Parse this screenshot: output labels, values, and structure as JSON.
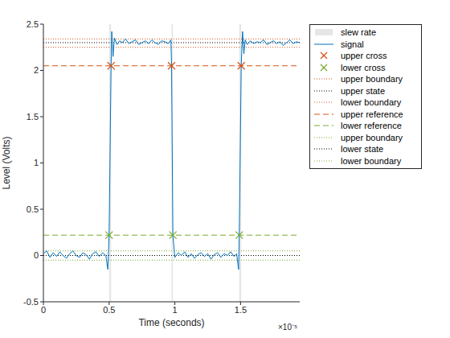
{
  "chart_data": {
    "type": "line",
    "xlabel": "Time (seconds)",
    "ylabel": "Level (Volts)",
    "x_tick_multiplier": "×10⁻⁵",
    "legend": "northeastoutside",
    "xlim": [
      0,
      1.95e-05
    ],
    "xticks": [
      {
        "value": 0,
        "label": "0"
      },
      {
        "value": 5e-06,
        "label": "0.5"
      },
      {
        "value": 1e-05,
        "label": "1"
      },
      {
        "value": 1.5e-05,
        "label": "1.5"
      }
    ],
    "ylim": [
      -0.5,
      2.5
    ],
    "yticks": [
      -0.5,
      0,
      0.5,
      1,
      1.5,
      2,
      2.5
    ],
    "series": [
      {
        "name": "slew rate",
        "type": "area",
        "color": "#e6e6e6",
        "x_ranges": [
          [
            5e-06,
            5.15e-06
          ],
          [
            9.75e-06,
            9.85e-06
          ],
          [
            1.49e-05,
            1.505e-05
          ]
        ]
      },
      {
        "name": "signal",
        "type": "line",
        "color": "#0072bd",
        "line_style": "solid",
        "x": [
          0,
          2.5e-07,
          5e-07,
          7.5e-07,
          1e-06,
          1.25e-06,
          1.5e-06,
          1.75e-06,
          2e-06,
          2.25e-06,
          2.5e-06,
          2.75e-06,
          3e-06,
          3.25e-06,
          3.5e-06,
          3.75e-06,
          4e-06,
          4.25e-06,
          4.5e-06,
          4.75e-06,
          4.9e-06,
          5e-06,
          5.15e-06,
          5.2e-06,
          5.3e-06,
          5.4e-06,
          5.6e-06,
          5.8e-06,
          6e-06,
          6.25e-06,
          6.5e-06,
          6.75e-06,
          7e-06,
          7.25e-06,
          7.5e-06,
          7.75e-06,
          8e-06,
          8.25e-06,
          8.5e-06,
          8.75e-06,
          9e-06,
          9.25e-06,
          9.5e-06,
          9.7e-06,
          9.75e-06,
          9.85e-06,
          1e-05,
          1.025e-05,
          1.05e-05,
          1.075e-05,
          1.1e-05,
          1.125e-05,
          1.15e-05,
          1.175e-05,
          1.2e-05,
          1.225e-05,
          1.25e-05,
          1.275e-05,
          1.3e-05,
          1.325e-05,
          1.35e-05,
          1.375e-05,
          1.4e-05,
          1.425e-05,
          1.45e-05,
          1.47e-05,
          1.485e-05,
          1.49e-05,
          1.505e-05,
          1.515e-05,
          1.525e-05,
          1.535e-05,
          1.55e-05,
          1.575e-05,
          1.6e-05,
          1.625e-05,
          1.65e-05,
          1.675e-05,
          1.7e-05,
          1.725e-05,
          1.75e-05,
          1.775e-05,
          1.8e-05,
          1.825e-05,
          1.85e-05,
          1.875e-05,
          1.9e-05,
          1.925e-05,
          1.95e-05
        ],
        "values": [
          0.02,
          0.05,
          -0.02,
          0.03,
          -0.01,
          0.04,
          0.0,
          -0.03,
          0.02,
          0.05,
          0.0,
          -0.02,
          0.03,
          0.01,
          -0.04,
          0.02,
          0.04,
          -0.01,
          0.03,
          0.0,
          -0.15,
          0.22,
          2.05,
          2.42,
          2.15,
          2.35,
          2.28,
          2.32,
          2.3,
          2.34,
          2.29,
          2.31,
          2.33,
          2.28,
          2.3,
          2.32,
          2.29,
          2.33,
          2.3,
          2.28,
          2.32,
          2.31,
          2.29,
          2.33,
          2.05,
          0.22,
          -0.02,
          0.03,
          0.0,
          0.04,
          -0.02,
          0.02,
          -0.03,
          0.01,
          0.03,
          -0.01,
          0.02,
          -0.04,
          0.01,
          0.03,
          -0.02,
          0.02,
          0.0,
          0.04,
          -0.01,
          0.02,
          -0.15,
          0.22,
          2.05,
          2.42,
          2.18,
          2.33,
          2.28,
          2.32,
          2.29,
          2.31,
          2.3,
          2.33,
          2.28,
          2.3,
          2.32,
          2.29,
          2.31,
          2.27,
          2.3,
          2.33,
          2.29,
          2.31,
          2.3
        ]
      },
      {
        "name": "upper cross",
        "type": "scatter",
        "color": "#d95319",
        "marker": "x",
        "x": [
          5.15e-06,
          9.75e-06,
          1.505e-05
        ],
        "values": [
          2.05,
          2.05,
          2.05
        ]
      },
      {
        "name": "lower cross",
        "type": "scatter",
        "color": "#77ac30",
        "marker": "x",
        "x": [
          5e-06,
          9.85e-06,
          1.49e-05
        ],
        "values": [
          0.22,
          0.22,
          0.22
        ]
      },
      {
        "name": "upper boundary",
        "type": "hline",
        "color": "#d95319",
        "line_style": "dotted",
        "value": 2.34
      },
      {
        "name": "upper state",
        "type": "hline",
        "color": "#000000",
        "line_style": "dotted",
        "value": 2.3
      },
      {
        "name": "lower boundary",
        "type": "hline",
        "color": "#d95319",
        "line_style": "dotted",
        "value": 2.25
      },
      {
        "name": "upper reference",
        "type": "hline",
        "color": "#d95319",
        "line_style": "dashed",
        "value": 2.05
      },
      {
        "name": "lower reference",
        "type": "hline",
        "color": "#77ac30",
        "line_style": "dashed",
        "value": 0.22
      },
      {
        "name": "upper boundary",
        "type": "hline",
        "color": "#77ac30",
        "line_style": "dotted",
        "value": 0.05
      },
      {
        "name": "lower state",
        "type": "hline",
        "color": "#000000",
        "line_style": "dotted",
        "value": 0.0
      },
      {
        "name": "lower boundary",
        "type": "hline",
        "color": "#77ac30",
        "line_style": "dotted",
        "value": -0.05
      }
    ]
  }
}
